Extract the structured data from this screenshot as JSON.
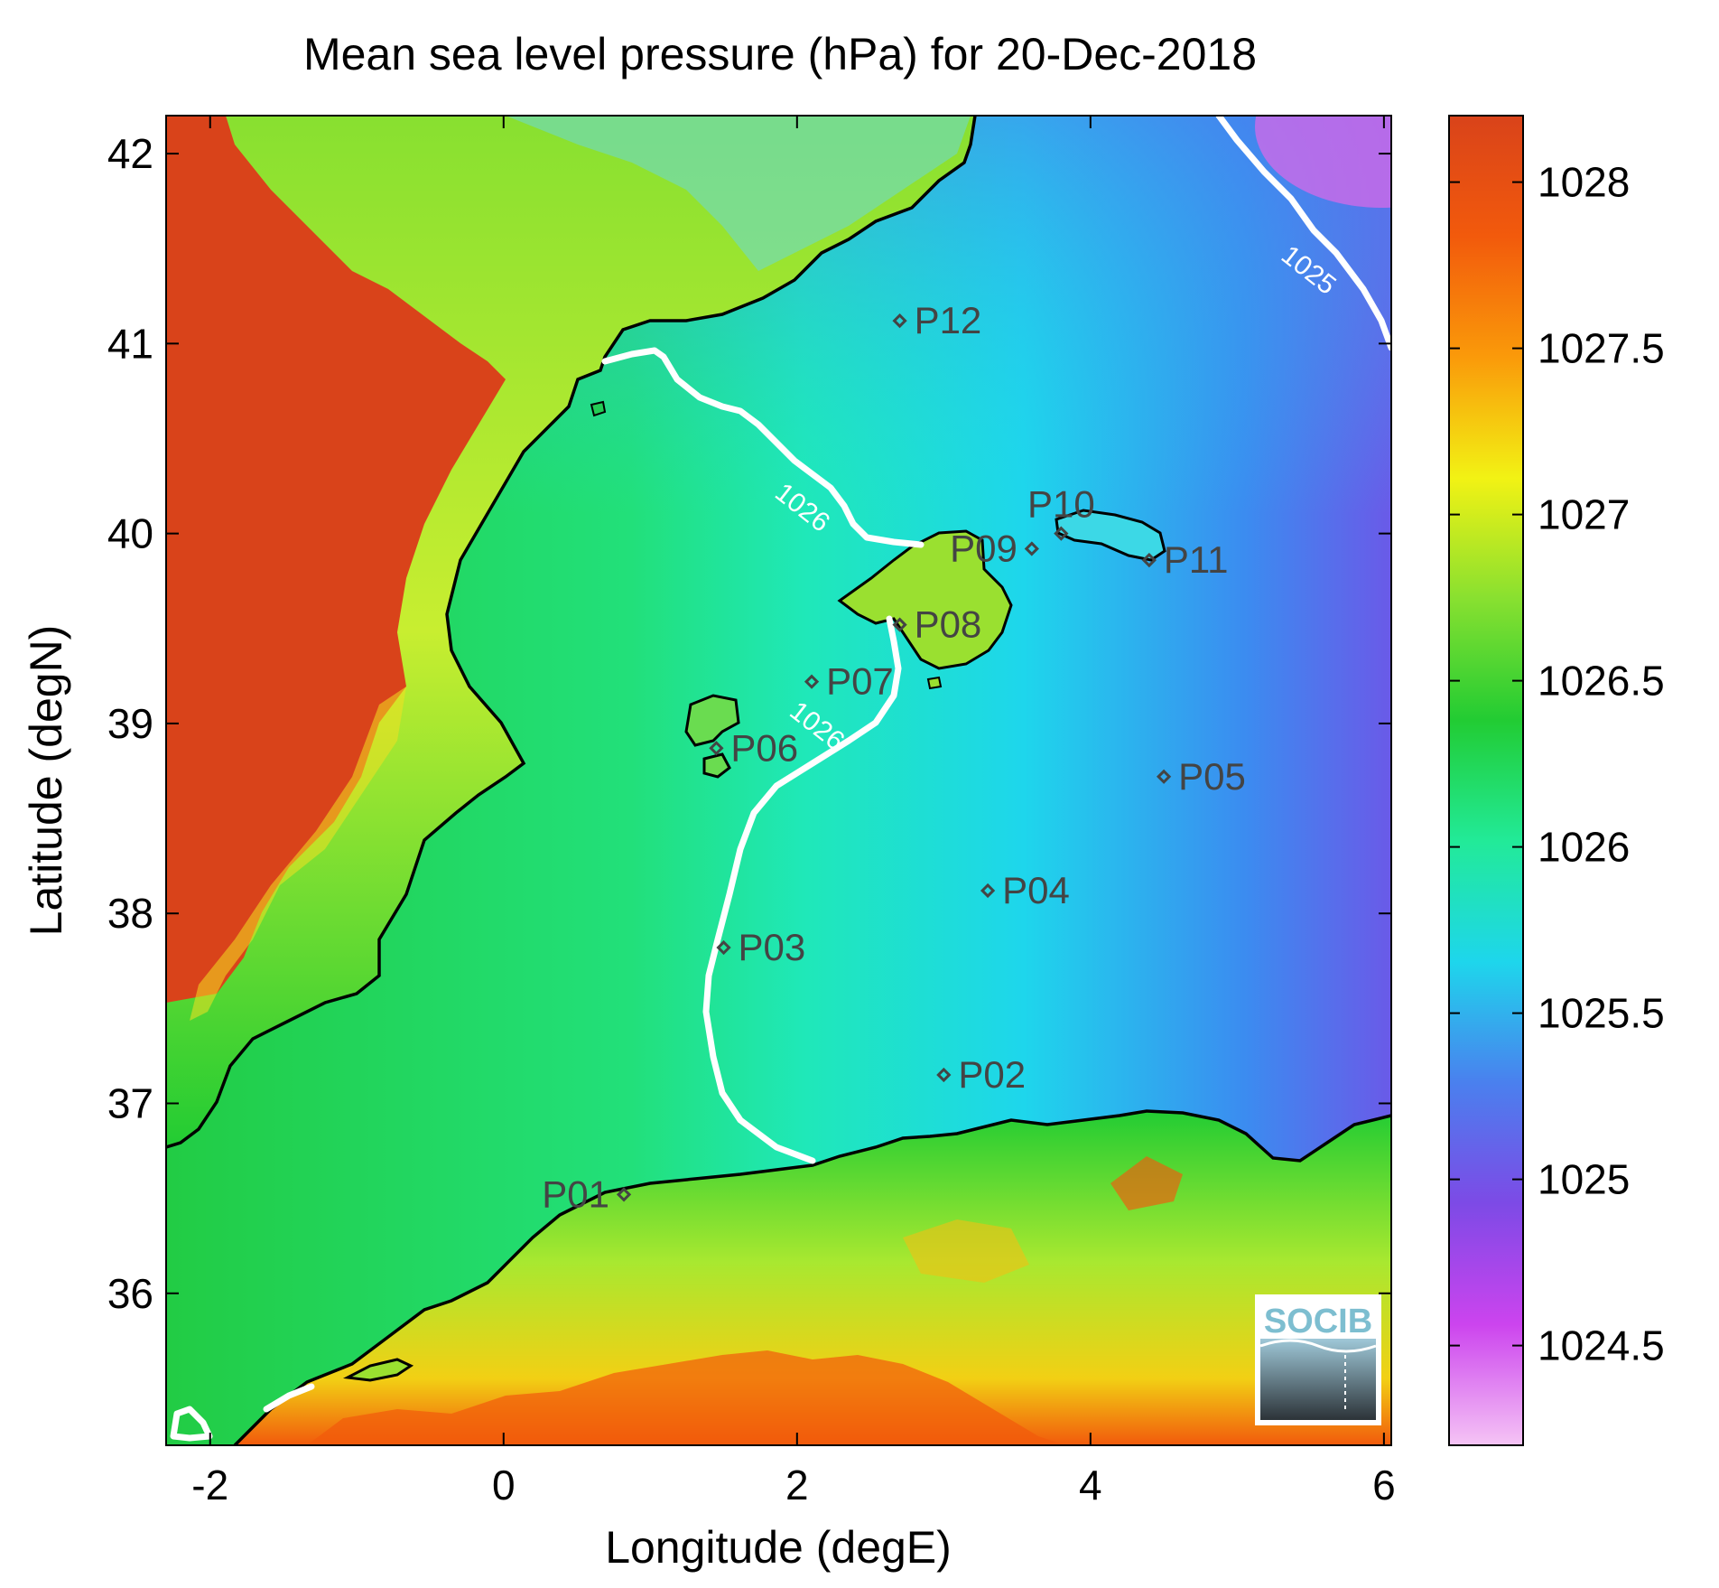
{
  "map": {
    "title": "Mean sea level pressure (hPa) for 20-Dec-2018",
    "xlabel": "Longitude (degE)",
    "ylabel": "Latitude (degN)",
    "xlim": [
      -2.3,
      6.05
    ],
    "ylim": [
      35.2,
      42.2
    ],
    "x_ticks": [
      -2,
      0,
      2,
      4,
      6
    ],
    "x_tick_labels": [
      "-2",
      "0",
      "2",
      "4",
      "6"
    ],
    "y_ticks": [
      36,
      37,
      38,
      39,
      40,
      41,
      42
    ],
    "y_tick_labels": [
      "36",
      "37",
      "38",
      "39",
      "40",
      "41",
      "42"
    ],
    "colorbar": {
      "range": [
        1024.2,
        1028.2
      ],
      "ticks": [
        1024.5,
        1025,
        1025.5,
        1026,
        1026.5,
        1027,
        1027.5,
        1028
      ],
      "tick_labels": [
        "1024.5",
        "1025",
        "1025.5",
        "1026",
        "1026.5",
        "1027",
        "1027.5",
        "1028"
      ],
      "colormap": [
        "#f5c4f5",
        "#cc44ee",
        "#7d4ae6",
        "#4a80ee",
        "#1ed6ec",
        "#22ea98",
        "#22cc33",
        "#88e030",
        "#f2f214",
        "#fa9a0a",
        "#f25a0c",
        "#d9431a"
      ]
    },
    "contour_labels": [
      {
        "text": "1025",
        "lon": 5.45,
        "lat": 41.35
      },
      {
        "text": "1026",
        "lon": 2.0,
        "lat": 40.1
      },
      {
        "text": "1026",
        "lon": 2.1,
        "lat": 38.95
      }
    ],
    "stations": [
      {
        "id": "P01",
        "lon": 0.82,
        "lat": 36.52,
        "label_side": "left"
      },
      {
        "id": "P02",
        "lon": 3.0,
        "lat": 37.15,
        "label_side": "right"
      },
      {
        "id": "P03",
        "lon": 1.5,
        "lat": 37.82,
        "label_side": "right"
      },
      {
        "id": "P04",
        "lon": 3.3,
        "lat": 38.12,
        "label_side": "right"
      },
      {
        "id": "P05",
        "lon": 4.5,
        "lat": 38.72,
        "label_side": "right"
      },
      {
        "id": "P06",
        "lon": 1.45,
        "lat": 38.87,
        "label_side": "right"
      },
      {
        "id": "P07",
        "lon": 2.1,
        "lat": 39.22,
        "label_side": "right"
      },
      {
        "id": "P08",
        "lon": 2.7,
        "lat": 39.52,
        "label_side": "right"
      },
      {
        "id": "P09",
        "lon": 3.6,
        "lat": 39.92,
        "label_side": "left"
      },
      {
        "id": "P10",
        "lon": 3.8,
        "lat": 40.0,
        "label_side": "above"
      },
      {
        "id": "P11",
        "lon": 4.4,
        "lat": 39.86,
        "label_side": "right"
      },
      {
        "id": "P12",
        "lon": 2.7,
        "lat": 41.12,
        "label_side": "right"
      }
    ],
    "logo_text": "SOCIB"
  }
}
